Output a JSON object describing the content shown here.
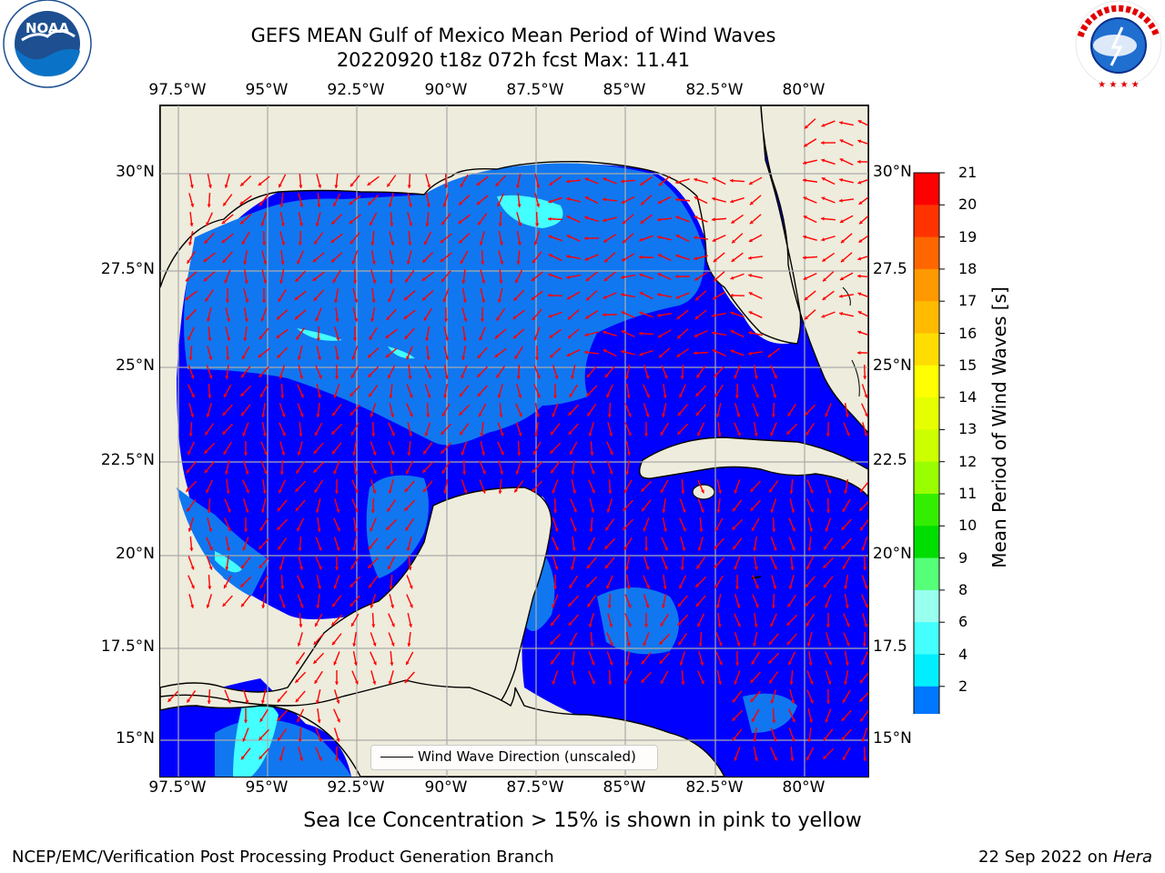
{
  "title": {
    "line1": "GEFS MEAN Gulf of Mexico Mean Period of Wind Waves",
    "line2": "20220920 t18z 072h fcst   Max: 11.41"
  },
  "logos": {
    "left": {
      "name": "noaa-logo",
      "text": "NOAA",
      "ring_text": "NATIONAL OCEANIC AND ATMOSPHERIC ADMINISTRATION · U.S. DEPARTMENT OF COMMERCE"
    },
    "right": {
      "name": "nws-logo",
      "ring_text": "NATIONAL WEATHER SERVICE"
    }
  },
  "map": {
    "lon_ticks": [
      "97.5°W",
      "95°W",
      "92.5°W",
      "90°W",
      "87.5°W",
      "85°W",
      "82.5°W",
      "80°W"
    ],
    "lat_ticks": [
      "30°N",
      "27.5°N",
      "25°N",
      "22.5°N",
      "20°N",
      "17.5°N",
      "15°N"
    ],
    "lat_ticks_right": [
      "30°N",
      "27.5",
      "25°N",
      "22.5",
      "20°N",
      "17.5",
      "15°N"
    ],
    "land_color": "#eeecdc",
    "arrow_color": "#ff0000",
    "legend_label": "Wind Wave Direction (unscaled)"
  },
  "colorbar": {
    "title": "Mean Period of Wind Waves [s]",
    "labels": [
      "21",
      "20",
      "19",
      "18",
      "17",
      "16",
      "15",
      "14",
      "13",
      "12",
      "11",
      "10",
      "9",
      "8",
      "6",
      "4",
      "2"
    ],
    "colors": [
      "#ff0000",
      "#ff3300",
      "#ff6600",
      "#ff9900",
      "#ffbb00",
      "#ffdd00",
      "#ffff00",
      "#e6ff00",
      "#ccff00",
      "#99ff00",
      "#33ee00",
      "#00dd00",
      "#55ff77",
      "#99ffee",
      "#44ffff",
      "#00eeff",
      "#0077ff"
    ],
    "extend_color": "#0000ff"
  },
  "note": "Sea Ice Concentration > 15% is shown in pink to yellow",
  "footer": {
    "left": "NCEP/EMC/Verification Post Processing Product Generation Branch",
    "right_prefix": "22 Sep 2022 on ",
    "right_machine": "Hera"
  }
}
